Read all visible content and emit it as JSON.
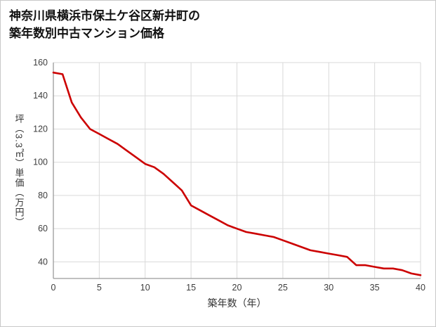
{
  "title": {
    "line1": "神奈川県横浜市保土ケ谷区新井町の",
    "line2": "築年数別中古マンション価格"
  },
  "chart_data": {
    "type": "line",
    "x": [
      0,
      1,
      2,
      3,
      4,
      5,
      6,
      7,
      8,
      9,
      10,
      11,
      12,
      13,
      14,
      15,
      16,
      17,
      18,
      19,
      20,
      21,
      22,
      23,
      24,
      25,
      26,
      27,
      28,
      29,
      30,
      31,
      32,
      33,
      34,
      35,
      36,
      37,
      38,
      39,
      40
    ],
    "values": [
      154,
      153,
      136,
      127,
      120,
      117,
      114,
      111,
      107,
      103,
      99,
      97,
      93,
      88,
      83,
      74,
      71,
      68,
      65,
      62,
      60,
      58,
      57,
      56,
      55,
      53,
      51,
      49,
      47,
      46,
      45,
      44,
      43,
      38,
      38,
      37,
      36,
      36,
      35,
      33,
      32
    ],
    "xlabel": "築年数（年）",
    "ylabel": "坪（3.3㎡）単価（万円）",
    "xlim": [
      0,
      40
    ],
    "ylim": [
      30,
      160
    ],
    "x_ticks": [
      0,
      5,
      10,
      15,
      20,
      25,
      30,
      35,
      40
    ],
    "y_ticks": [
      40,
      60,
      80,
      100,
      120,
      140,
      160
    ],
    "grid": true,
    "legend": "none",
    "line_color": "#cc0000",
    "grid_color": "#d9d9d9",
    "spine_color": "#9b9b9b",
    "tick_color": "#3d3d3d"
  }
}
